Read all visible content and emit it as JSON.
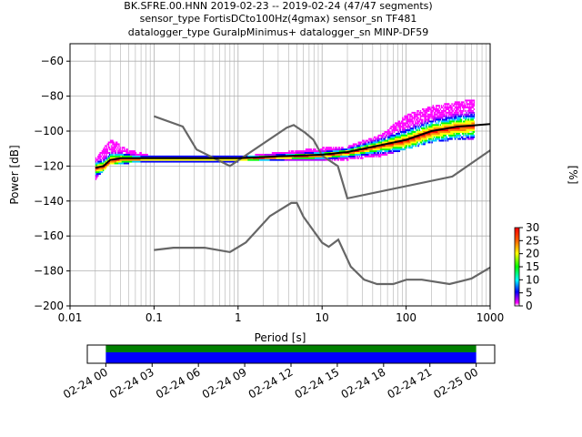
{
  "chart_data": {
    "type": "heatmap",
    "title_lines": [
      "BK.SFRE.00.HNN   2019-02-23 -- 2019-02-24  (47/47 segments)",
      "sensor_type FortisDCto100Hz(4gmax) sensor_sn TF481",
      "datalogger_type GuralpMinimus+ datalogger_sn MINP-DF59"
    ],
    "xlabel": "Period [s]",
    "ylabel": "Power [dB]",
    "xscale": "log",
    "xlim": [
      0.01,
      1000
    ],
    "ylim": [
      -200,
      -50
    ],
    "x_ticks": [
      {
        "v": 0.01,
        "label": "0.01"
      },
      {
        "v": 0.1,
        "label": "0.1"
      },
      {
        "v": 1,
        "label": "1"
      },
      {
        "v": 10,
        "label": "10"
      },
      {
        "v": 100,
        "label": "100"
      },
      {
        "v": 1000,
        "label": "1000"
      }
    ],
    "y_ticks": [
      {
        "v": -60,
        "label": "−60"
      },
      {
        "v": -80,
        "label": "−80"
      },
      {
        "v": -100,
        "label": "−100"
      },
      {
        "v": -120,
        "label": "−120"
      },
      {
        "v": -140,
        "label": "−140"
      },
      {
        "v": -160,
        "label": "−160"
      },
      {
        "v": -180,
        "label": "−180"
      },
      {
        "v": -200,
        "label": "−200"
      }
    ],
    "grid": "on (x major + minor, y major)",
    "colorbar": {
      "label": "[%]",
      "range": [
        0,
        30
      ],
      "ticks": [
        {
          "v": 0,
          "label": "0"
        },
        {
          "v": 5,
          "label": "5"
        },
        {
          "v": 10,
          "label": "10"
        },
        {
          "v": 15,
          "label": "15"
        },
        {
          "v": 20,
          "label": "20"
        },
        {
          "v": 25,
          "label": "25"
        },
        {
          "v": 30,
          "label": "30"
        }
      ],
      "colormap": "pqlx"
    },
    "noise_model_high": [
      [
        0.1,
        -91.5
      ],
      [
        0.22,
        -97.4
      ],
      [
        0.32,
        -110.5
      ],
      [
        0.8,
        -120
      ],
      [
        3.8,
        -98
      ],
      [
        4.6,
        -96.5
      ],
      [
        6.3,
        -101
      ],
      [
        7.9,
        -105
      ],
      [
        10,
        -114
      ],
      [
        15.4,
        -120
      ],
      [
        20,
        -138.5
      ],
      [
        354.8,
        -126
      ],
      [
        1000,
        -111
      ]
    ],
    "noise_model_low": [
      [
        0.1,
        -168
      ],
      [
        0.17,
        -166.7
      ],
      [
        0.4,
        -166.7
      ],
      [
        0.8,
        -169.2
      ],
      [
        1.24,
        -163.7
      ],
      [
        2.4,
        -148.6
      ],
      [
        4.3,
        -141.1
      ],
      [
        5,
        -141.1
      ],
      [
        6,
        -149
      ],
      [
        10,
        -163.8
      ],
      [
        12,
        -166.2
      ],
      [
        15.6,
        -162.1
      ],
      [
        21.9,
        -177.5
      ],
      [
        31.6,
        -185
      ],
      [
        45,
        -187.5
      ],
      [
        70,
        -187.5
      ],
      [
        101,
        -185
      ],
      [
        154,
        -185
      ],
      [
        328,
        -187.5
      ],
      [
        600,
        -184.4
      ],
      [
        1000,
        -178
      ]
    ],
    "mode_curve": [
      [
        0.02,
        -121
      ],
      [
        0.025,
        -120
      ],
      [
        0.03,
        -116.5
      ],
      [
        0.04,
        -115.5
      ],
      [
        0.1,
        -115.5
      ],
      [
        1,
        -115.5
      ],
      [
        3,
        -114.5
      ],
      [
        10,
        -113.5
      ],
      [
        20,
        -112
      ],
      [
        50,
        -108
      ],
      [
        100,
        -105
      ],
      [
        200,
        -100
      ],
      [
        400,
        -97.5
      ],
      [
        1000,
        -96
      ]
    ],
    "psd_density": [
      {
        "period": 0.02,
        "power_min": -127,
        "power_max": -115
      },
      {
        "period": 0.03,
        "power_min": -118,
        "power_max": -104
      },
      {
        "period": 0.05,
        "power_min": -118,
        "power_max": -110
      },
      {
        "period": 0.1,
        "power_min": -117,
        "power_max": -114
      },
      {
        "period": 1,
        "power_min": -117,
        "power_max": -114
      },
      {
        "period": 10,
        "power_min": -116,
        "power_max": -109
      },
      {
        "period": 20,
        "power_min": -116,
        "power_max": -108
      },
      {
        "period": 50,
        "power_min": -114,
        "power_max": -101
      },
      {
        "period": 100,
        "power_min": -110,
        "power_max": -90
      },
      {
        "period": 200,
        "power_min": -106,
        "power_max": -85
      },
      {
        "period": 500,
        "power_min": -104,
        "power_max": -82
      },
      {
        "period": 650,
        "power_min": -104,
        "power_max": -82
      }
    ],
    "coverage": {
      "time_ticks": [
        {
          "t": 0,
          "label": "02-24 00"
        },
        {
          "t": 3,
          "label": "02-24 03"
        },
        {
          "t": 6,
          "label": "02-24 06"
        },
        {
          "t": 9,
          "label": "02-24 09"
        },
        {
          "t": 12,
          "label": "02-24 12"
        },
        {
          "t": 15,
          "label": "02-24 15"
        },
        {
          "t": 18,
          "label": "02-24 18"
        },
        {
          "t": 21,
          "label": "02-24 21"
        },
        {
          "t": 24,
          "label": "02-25 00"
        }
      ],
      "range_hours": [
        -1.2,
        25.2
      ],
      "data_hours": [
        0,
        24
      ],
      "colors": {
        "data": "#0000ff",
        "used": "#008000"
      }
    },
    "colors": {
      "noise_model": "#666666",
      "mode": "#000000",
      "grid": "#b0b0b0"
    }
  }
}
